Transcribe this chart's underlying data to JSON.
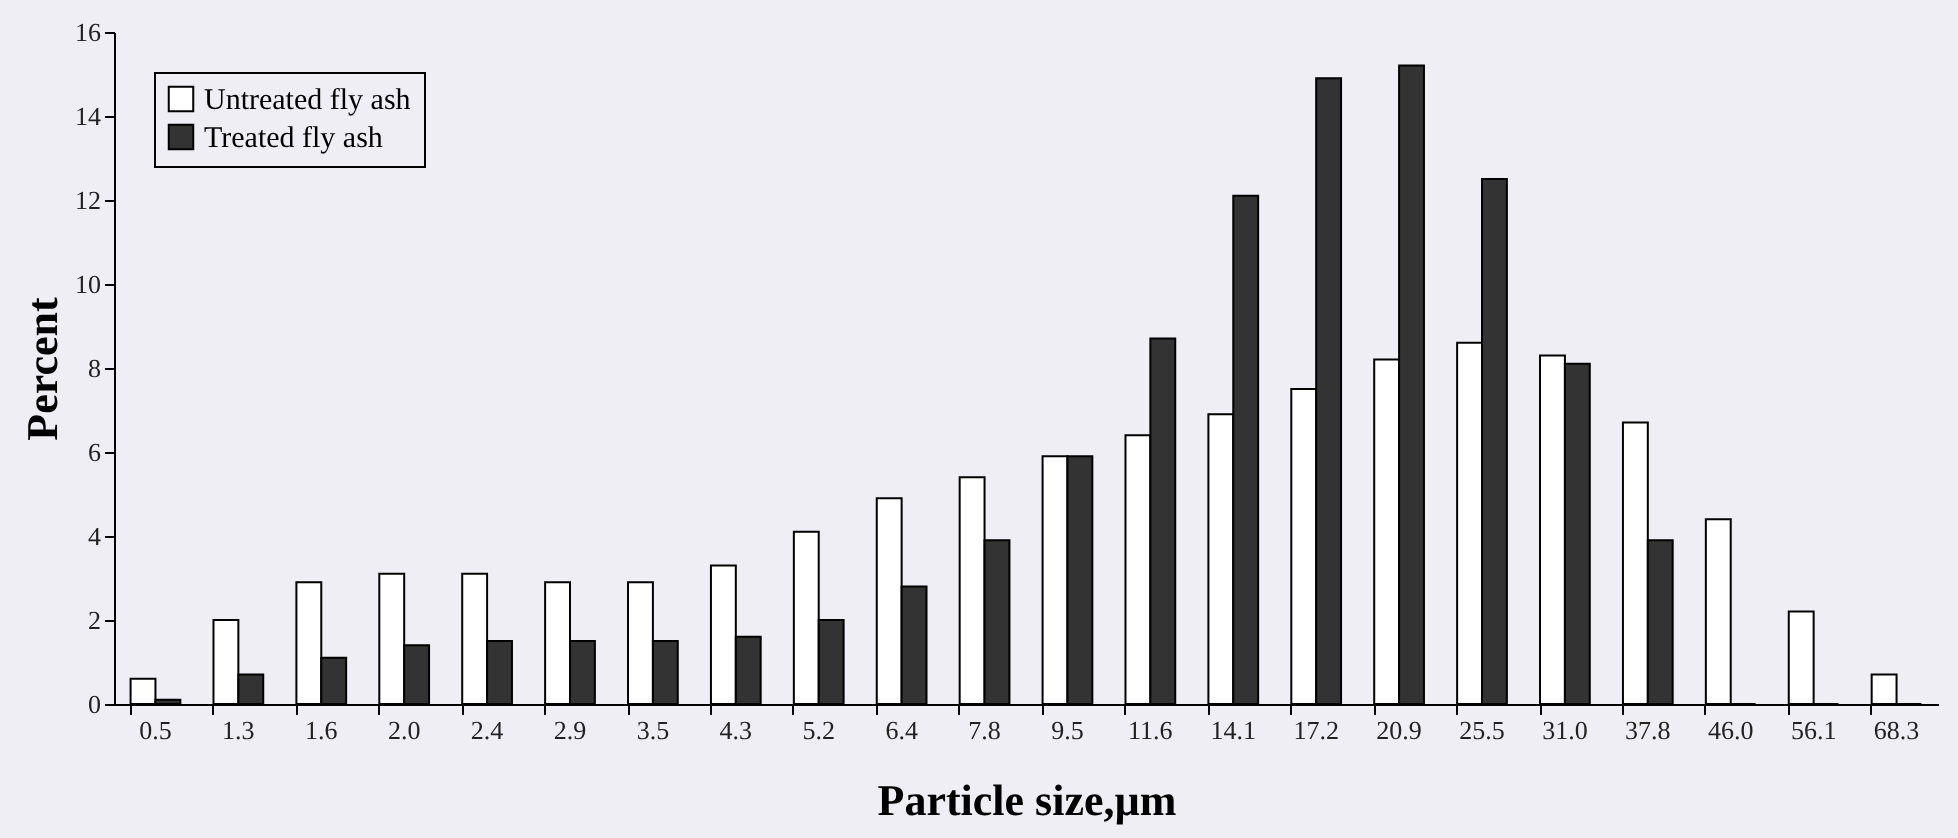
{
  "chart_data": {
    "type": "bar",
    "xlabel": "Particle size,µm",
    "ylabel": "Percent",
    "categories": [
      "0.5",
      "1.3",
      "1.6",
      "2.0",
      "2.4",
      "2.9",
      "3.5",
      "4.3",
      "5.2",
      "6.4",
      "7.8",
      "9.5",
      "11.6",
      "14.1",
      "17.2",
      "20.9",
      "25.5",
      "31.0",
      "37.8",
      "46.0",
      "56.1",
      "68.3"
    ],
    "series": [
      {
        "name": "Untreated fly ash",
        "color": "#ffffff",
        "values": [
          0.6,
          2.0,
          2.9,
          3.1,
          3.1,
          2.9,
          2.9,
          3.3,
          4.1,
          4.9,
          5.4,
          5.9,
          6.4,
          6.9,
          7.5,
          8.2,
          8.6,
          8.3,
          6.7,
          4.4,
          2.2,
          0.7
        ]
      },
      {
        "name": "Treated fly ash",
        "color": "#333333",
        "values": [
          0.1,
          0.7,
          1.1,
          1.4,
          1.5,
          1.5,
          1.5,
          1.6,
          2.0,
          2.8,
          3.9,
          5.9,
          8.7,
          12.1,
          14.9,
          15.2,
          12.5,
          8.1,
          3.9,
          0,
          0,
          0
        ]
      }
    ],
    "ylim": [
      0,
      16
    ],
    "yticks": [
      0,
      2,
      4,
      6,
      8,
      10,
      12,
      14,
      16
    ],
    "grid": false,
    "legend": "top left"
  }
}
